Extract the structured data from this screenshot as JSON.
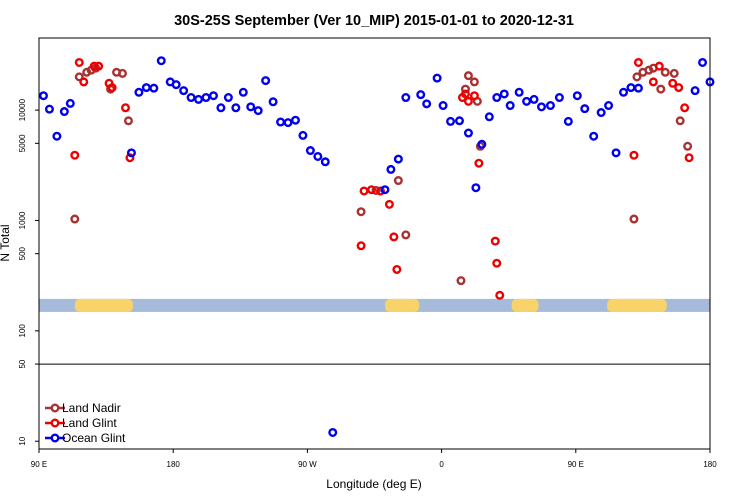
{
  "chart_data": {
    "type": "scatter",
    "title": "30S-25S September (Ver 10_MIP)   2015-01-01 to 2020-12-31",
    "xlabel": "Longitude (deg E)",
    "ylabel": "N Total",
    "x_scale": "linear",
    "y_scale": "log",
    "xlim": [
      90,
      540
    ],
    "ylim": [
      8.5,
      45000
    ],
    "x_ticks": [
      {
        "value": 90,
        "label": "90 E"
      },
      {
        "value": 180,
        "label": "180"
      },
      {
        "value": 270,
        "label": "90 W"
      },
      {
        "value": 360,
        "label": "0"
      },
      {
        "value": 450,
        "label": "90 E"
      },
      {
        "value": 540,
        "label": "180"
      }
    ],
    "y_ticks": [
      {
        "value": 10,
        "label": "10"
      },
      {
        "value": 50,
        "label": "50"
      },
      {
        "value": 100,
        "label": "100"
      },
      {
        "value": 500,
        "label": "500"
      },
      {
        "value": 1000,
        "label": "1000"
      },
      {
        "value": 5000,
        "label": "5000"
      },
      {
        "value": 10000,
        "label": "10000"
      }
    ],
    "threshold_line": 50,
    "land_band": {
      "y": 170,
      "ocean_color": "#a5bbd9",
      "land_color": "#f7d36a",
      "land_segments": [
        [
          114,
          153
        ],
        [
          322,
          345
        ],
        [
          407,
          425
        ],
        [
          471,
          511
        ]
      ]
    },
    "legend": {
      "position": "bottom-left"
    },
    "series": [
      {
        "name": "Land Nadir",
        "color": "#a83232",
        "x": [
          114,
          117,
          122,
          125,
          128,
          138,
          142,
          146,
          150,
          306,
          316,
          331,
          336,
          373,
          376,
          378,
          382,
          384,
          386,
          489,
          491,
          495,
          499,
          502,
          507,
          510,
          516,
          520,
          525
        ],
        "y": [
          1030,
          20000,
          22000,
          23000,
          24000,
          15500,
          22000,
          21500,
          8000,
          1200,
          1870,
          2300,
          740,
          285,
          15500,
          20500,
          18000,
          12000,
          4700,
          1030,
          20000,
          22000,
          23000,
          24000,
          15500,
          22000,
          21500,
          8000,
          4700
        ]
      },
      {
        "name": "Land Glint",
        "color": "#ee0000",
        "x": [
          114,
          117,
          120,
          127,
          130,
          137,
          139,
          148,
          151,
          306,
          308,
          313,
          319,
          325,
          328,
          330,
          374,
          376,
          378,
          382,
          385,
          396,
          397,
          399,
          489,
          492,
          502,
          506,
          515,
          519,
          523,
          526
        ],
        "y": [
          3900,
          27000,
          18000,
          25000,
          25000,
          17500,
          16000,
          10500,
          3700,
          590,
          1850,
          1900,
          1850,
          1400,
          710,
          360,
          13000,
          14000,
          12000,
          13500,
          3300,
          650,
          410,
          210,
          3900,
          27000,
          18000,
          25000,
          17500,
          16000,
          10500,
          3700
        ]
      },
      {
        "name": "Ocean Glint",
        "color": "#0000ee",
        "x": [
          93,
          97,
          102,
          107,
          111,
          152,
          157,
          162,
          167,
          172,
          178,
          182,
          187,
          192,
          197,
          202,
          207,
          212,
          217,
          222,
          227,
          232,
          237,
          242,
          247,
          252,
          257,
          262,
          267,
          272,
          277,
          282,
          287,
          322,
          326,
          331,
          336,
          346,
          350,
          357,
          361,
          366,
          372,
          378,
          383,
          387,
          392,
          397,
          402,
          406,
          412,
          417,
          422,
          427,
          433,
          439,
          445,
          451,
          456,
          462,
          467,
          472,
          477,
          482,
          487,
          492,
          530,
          535,
          540
        ],
        "y": [
          13500,
          10200,
          5800,
          9700,
          11500,
          4100,
          14500,
          16000,
          15800,
          28000,
          18000,
          17000,
          15000,
          13000,
          12500,
          13000,
          13500,
          10500,
          13000,
          10500,
          14500,
          10700,
          9900,
          18500,
          11900,
          7800,
          7700,
          8100,
          5900,
          4300,
          3800,
          3400,
          12,
          1900,
          2900,
          3600,
          13000,
          13800,
          11400,
          19500,
          11000,
          7900,
          8000,
          6200,
          1980,
          4900,
          8700,
          13000,
          14000,
          11000,
          14500,
          12000,
          12500,
          10700,
          11000,
          13000,
          7900,
          13500,
          10300,
          5800,
          9500,
          11000,
          4100,
          14500,
          16000,
          15800,
          15000,
          27000,
          18000
        ]
      }
    ]
  }
}
